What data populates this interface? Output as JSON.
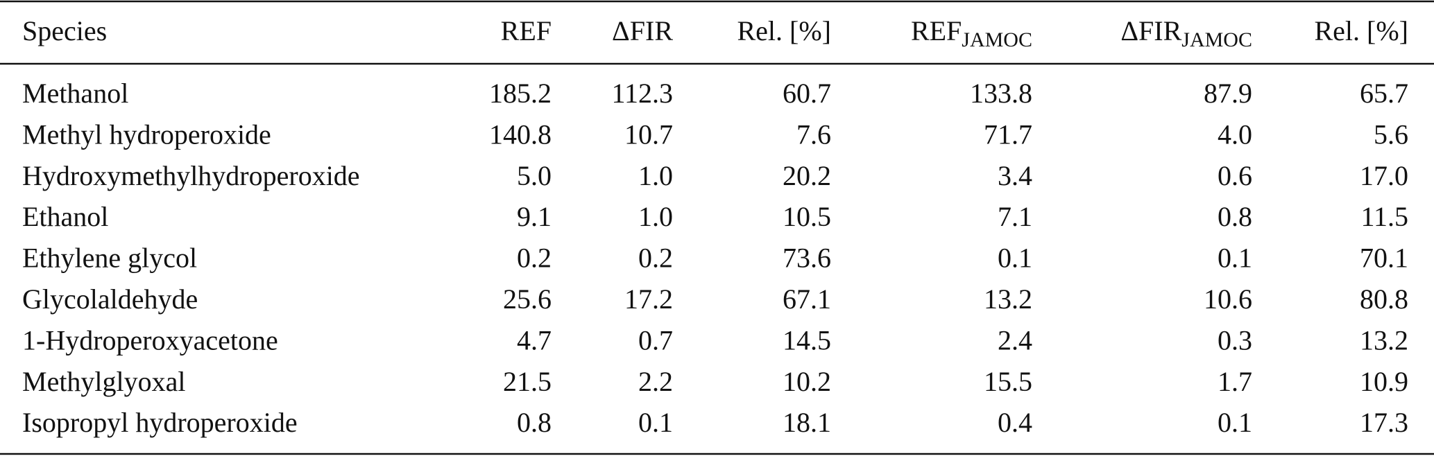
{
  "table": {
    "header": [
      "Species",
      "REF",
      "ΔFIR",
      "Rel. [%]",
      {
        "main": "REF",
        "sub": "JAMOC"
      },
      {
        "main": "ΔFIR",
        "sub": "JAMOC"
      },
      "Rel. [%]"
    ],
    "rows": [
      [
        "Methanol",
        "185.2",
        "112.3",
        "60.7",
        "133.8",
        "87.9",
        "65.7"
      ],
      [
        "Methyl hydroperoxide",
        "140.8",
        "10.7",
        "7.6",
        "71.7",
        "4.0",
        "5.6"
      ],
      [
        "Hydroxymethylhydroperoxide",
        "5.0",
        "1.0",
        "20.2",
        "3.4",
        "0.6",
        "17.0"
      ],
      [
        "Ethanol",
        "9.1",
        "1.0",
        "10.5",
        "7.1",
        "0.8",
        "11.5"
      ],
      [
        "Ethylene glycol",
        "0.2",
        "0.2",
        "73.6",
        "0.1",
        "0.1",
        "70.1"
      ],
      [
        "Glycolaldehyde",
        "25.6",
        "17.2",
        "67.1",
        "13.2",
        "10.6",
        "80.8"
      ],
      [
        "1-Hydroperoxyacetone",
        "4.7",
        "0.7",
        "14.5",
        "2.4",
        "0.3",
        "13.2"
      ],
      [
        "Methylglyoxal",
        "21.5",
        "2.2",
        "10.2",
        "15.5",
        "1.7",
        "10.9"
      ],
      [
        "Isopropyl hydroperoxide",
        "0.8",
        "0.1",
        "18.1",
        "0.4",
        "0.1",
        "17.3"
      ]
    ]
  }
}
